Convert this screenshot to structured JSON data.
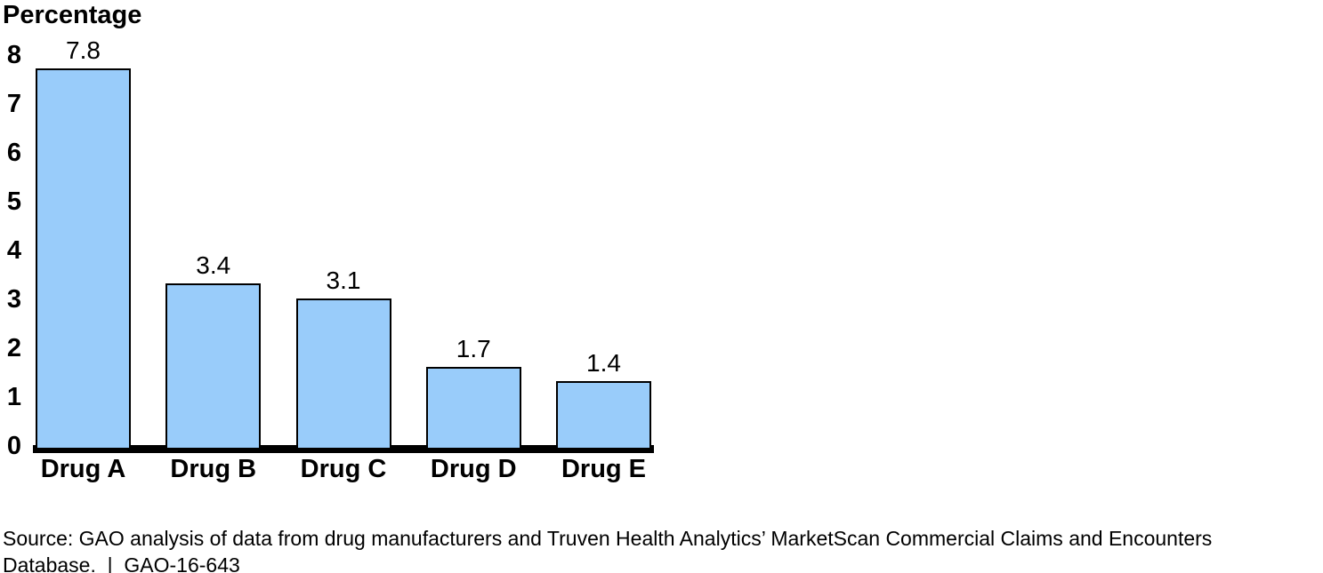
{
  "chart_data": {
    "type": "bar",
    "title": "",
    "ylabel": "Percentage",
    "xlabel": "",
    "categories": [
      "Drug A",
      "Drug B",
      "Drug C",
      "Drug D",
      "Drug E"
    ],
    "values": [
      7.8,
      3.4,
      3.1,
      1.7,
      1.4
    ],
    "value_labels": [
      "7.8",
      "3.4",
      "3.1",
      "1.7",
      "1.4"
    ],
    "ylim": [
      0,
      8
    ],
    "yticks": [
      0,
      1,
      2,
      3,
      4,
      5,
      6,
      7,
      8
    ],
    "grid": false,
    "legend": false,
    "bar_fill": "#99CCFA",
    "bar_border": "#000000",
    "axis_color": "#000000"
  },
  "source": {
    "line1": "Source: GAO analysis of data from drug manufacturers and Truven Health Analytics’ MarketScan Commercial Claims and Encounters",
    "line2": "Database.  |  GAO-16-643"
  }
}
